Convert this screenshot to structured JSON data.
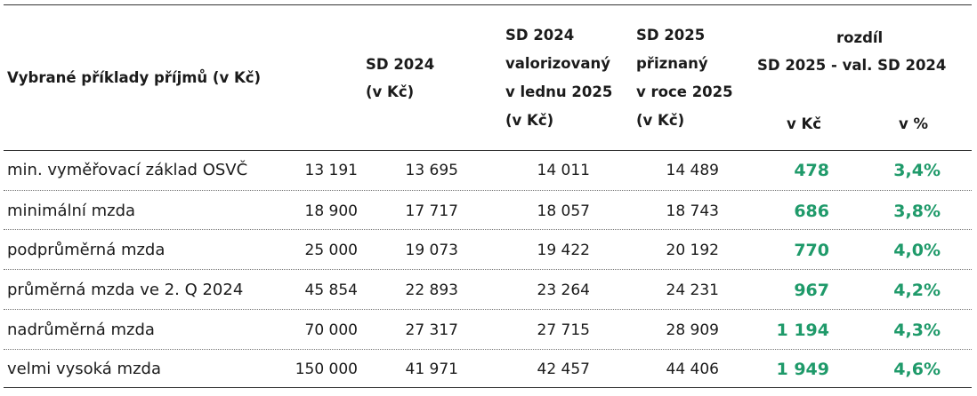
{
  "header": {
    "label_col": "Vybrané příklady příjmů (v Kč)",
    "sd2024": [
      "SD 2024",
      "(v Kč)"
    ],
    "sd2024_val": [
      "SD 2024",
      "valorizovaný",
      "v lednu 2025",
      "(v Kč)"
    ],
    "sd2025": [
      "SD 2025",
      "přiznaný",
      "v roce 2025",
      "(v Kč)"
    ],
    "diff_title": "rozdíl",
    "diff_sub": "SD 2025 - val. SD 2024",
    "diff_kc": "v Kč",
    "diff_pct": "v %"
  },
  "rows": [
    {
      "label": "min. vyměřovací základ OSVČ",
      "income": "13 191",
      "sd2024": "13 695",
      "sd2024_val": "14 011",
      "sd2025": "14 489",
      "diff_kc": "478",
      "diff_pct": "3,4%"
    },
    {
      "label": "minimální mzda",
      "income": "18 900",
      "sd2024": "17 717",
      "sd2024_val": "18 057",
      "sd2025": "18 743",
      "diff_kc": "686",
      "diff_pct": "3,8%"
    },
    {
      "label": "podprůměrná mzda",
      "income": "25 000",
      "sd2024": "19 073",
      "sd2024_val": "19 422",
      "sd2025": "20 192",
      "diff_kc": "770",
      "diff_pct": "4,0%"
    },
    {
      "label": "průměrná mzda ve 2. Q 2024",
      "income": "45 854",
      "sd2024": "22 893",
      "sd2024_val": "23 264",
      "sd2025": "24 231",
      "diff_kc": "967",
      "diff_pct": "4,2%"
    },
    {
      "label": "nadrůměrná mzda",
      "income": "70 000",
      "sd2024": "27 317",
      "sd2024_val": "27 715",
      "sd2025": "28 909",
      "diff_kc": "1 194",
      "diff_pct": "4,3%"
    },
    {
      "label": "velmi vysoká mzda",
      "income": "150 000",
      "sd2024": "41 971",
      "sd2024_val": "42 457",
      "sd2025": "44 406",
      "diff_kc": "1 949",
      "diff_pct": "4,6%"
    }
  ],
  "colors": {
    "accent_green": "#1f9a6a",
    "rule": "#333333"
  }
}
